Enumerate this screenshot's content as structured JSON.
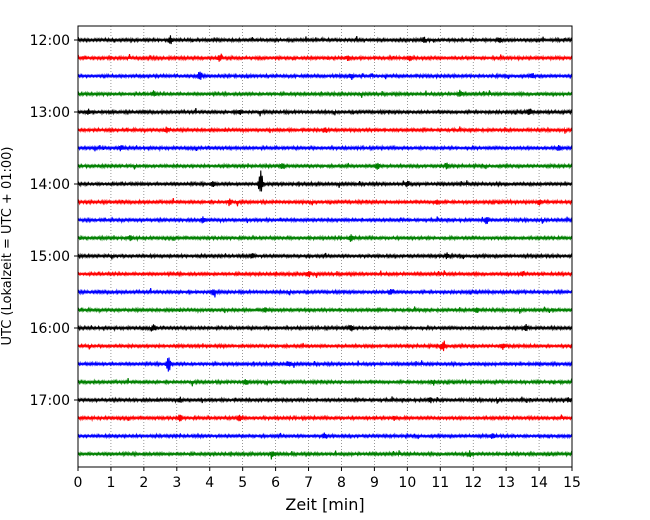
{
  "chart_data": {
    "type": "line",
    "xlabel": "Zeit  [min]",
    "ylabel": "UTC (Lokalzeit = UTC + 01:00)",
    "xlim": [
      0,
      15
    ],
    "x_ticks": [
      0,
      1,
      2,
      3,
      4,
      5,
      6,
      7,
      8,
      9,
      10,
      11,
      12,
      13,
      14,
      15
    ],
    "x_tick_labels": [
      "0",
      "1",
      "2",
      "3",
      "4",
      "5",
      "6",
      "7",
      "8",
      "9",
      "10",
      "11",
      "12",
      "13",
      "14",
      "15"
    ],
    "y_tick_labels": [
      "12:00",
      "13:00",
      "14:00",
      "15:00",
      "16:00",
      "17:00"
    ],
    "grid": "vertical dotted at each minute",
    "trace_colors": [
      "#000000",
      "#ff0000",
      "#0000ff",
      "#008000"
    ],
    "traces": [
      {
        "start": "12:00",
        "events": [
          [
            2.8,
            0.5
          ],
          [
            10.5,
            0.35
          ],
          [
            12.8,
            0.3
          ]
        ]
      },
      {
        "start": "12:15",
        "events": [
          [
            8.2,
            0.4
          ],
          [
            10.1,
            0.35
          ],
          [
            4.3,
            0.3
          ]
        ]
      },
      {
        "start": "12:30",
        "events": [
          [
            3.7,
            0.5
          ],
          [
            8.3,
            0.35
          ],
          [
            13.8,
            0.3
          ]
        ]
      },
      {
        "start": "12:45",
        "events": [
          [
            11.6,
            0.4
          ],
          [
            2.3,
            0.3
          ]
        ]
      },
      {
        "start": "13:00",
        "events": [
          [
            4.9,
            0.35
          ],
          [
            13.7,
            0.35
          ],
          [
            0.3,
            0.3
          ]
        ]
      },
      {
        "start": "13:15",
        "events": [
          [
            2.7,
            0.4
          ],
          [
            7.5,
            0.3
          ]
        ]
      },
      {
        "start": "13:30",
        "events": [
          [
            1.3,
            0.3
          ],
          [
            14.6,
            0.3
          ]
        ]
      },
      {
        "start": "13:45",
        "events": [
          [
            6.2,
            0.5
          ],
          [
            9.1,
            0.5
          ],
          [
            11.2,
            0.35
          ]
        ]
      },
      {
        "start": "14:00",
        "events": [
          [
            5.55,
            1.6
          ],
          [
            10.0,
            0.35
          ],
          [
            4.1,
            0.3
          ]
        ]
      },
      {
        "start": "14:15",
        "events": [
          [
            4.6,
            0.4
          ],
          [
            10.9,
            0.35
          ],
          [
            14.0,
            0.3
          ]
        ]
      },
      {
        "start": "14:30",
        "events": [
          [
            12.4,
            0.45
          ],
          [
            3.8,
            0.3
          ]
        ]
      },
      {
        "start": "14:45",
        "events": [
          [
            8.3,
            0.45
          ],
          [
            1.6,
            0.3
          ]
        ]
      },
      {
        "start": "15:00",
        "events": [
          [
            5.3,
            0.35
          ],
          [
            11.2,
            0.3
          ]
        ]
      },
      {
        "start": "15:15",
        "events": [
          [
            7.0,
            0.4
          ],
          [
            13.5,
            0.3
          ]
        ]
      },
      {
        "start": "15:30",
        "events": [
          [
            4.1,
            0.35
          ],
          [
            9.5,
            0.35
          ]
        ]
      },
      {
        "start": "15:45",
        "events": [
          [
            5.7,
            0.3
          ],
          [
            12.1,
            0.3
          ]
        ]
      },
      {
        "start": "16:00",
        "events": [
          [
            2.3,
            0.35
          ],
          [
            8.3,
            0.35
          ],
          [
            13.6,
            0.4
          ]
        ]
      },
      {
        "start": "16:15",
        "events": [
          [
            11.1,
            0.7
          ],
          [
            12.9,
            0.3
          ]
        ]
      },
      {
        "start": "16:30",
        "events": [
          [
            2.75,
            1.0
          ],
          [
            6.4,
            0.3
          ]
        ]
      },
      {
        "start": "16:45",
        "events": [
          [
            5.1,
            0.35
          ],
          [
            10.8,
            0.3
          ]
        ]
      },
      {
        "start": "17:00",
        "events": [
          [
            10.7,
            0.35
          ],
          [
            3.1,
            0.3
          ],
          [
            14.9,
            0.3
          ]
        ]
      },
      {
        "start": "17:15",
        "events": [
          [
            3.1,
            0.4
          ],
          [
            4.9,
            0.4
          ],
          [
            9.6,
            0.3
          ]
        ]
      },
      {
        "start": "17:30",
        "events": [
          [
            7.5,
            0.35
          ],
          [
            12.6,
            0.3
          ]
        ]
      },
      {
        "start": "17:45",
        "events": [
          [
            5.9,
            0.3
          ],
          [
            11.9,
            0.35
          ]
        ]
      }
    ]
  }
}
